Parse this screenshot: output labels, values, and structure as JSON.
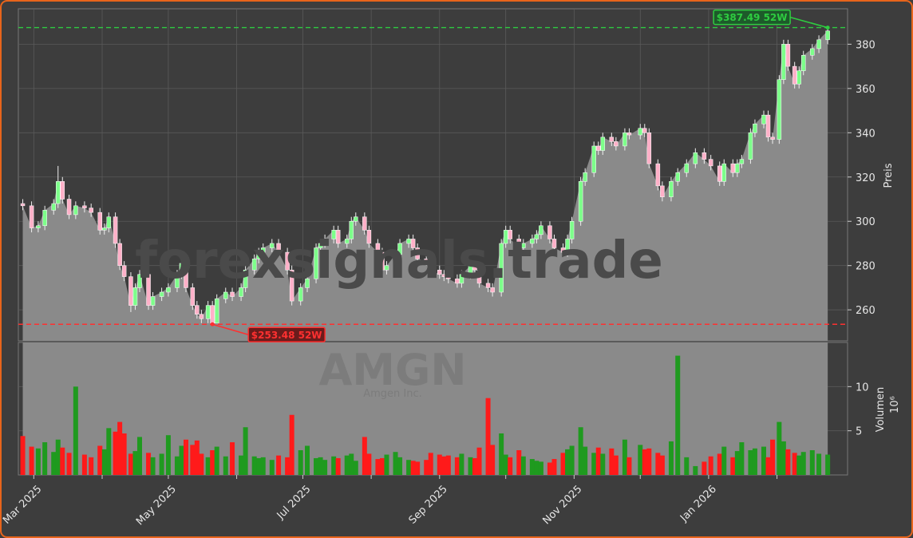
{
  "chart_data": {
    "type": "candlestick",
    "watermark": "forexsignals.trade",
    "ticker": "AMGN",
    "company": "Amgen Inc.",
    "ylabel": "Preis",
    "volume_label": "Volumen",
    "volume_unit": "10⁶",
    "up_color": "#7dff8a",
    "down_color": "#ffb0c8",
    "volume_up_color": "#1f9a1f",
    "volume_down_color": "#ff1a1a",
    "area_color": "#8a8a8a",
    "grid": true,
    "x": [
      "2025-02-24",
      "2025-02-28",
      "2025-03-03",
      "2025-03-06",
      "2025-03-10",
      "2025-03-12",
      "2025-03-14",
      "2025-03-17",
      "2025-03-20",
      "2025-03-24",
      "2025-03-27",
      "2025-03-31",
      "2025-04-02",
      "2025-04-04",
      "2025-04-07",
      "2025-04-09",
      "2025-04-11",
      "2025-04-14",
      "2025-04-16",
      "2025-04-18",
      "2025-04-22",
      "2025-04-24",
      "2025-04-28",
      "2025-05-01",
      "2025-05-05",
      "2025-05-07",
      "2025-05-09",
      "2025-05-12",
      "2025-05-14",
      "2025-05-16",
      "2025-05-19",
      "2025-05-21",
      "2025-05-23",
      "2025-05-27",
      "2025-05-30",
      "2025-06-03",
      "2025-06-05",
      "2025-06-09",
      "2025-06-11",
      "2025-06-13",
      "2025-06-17",
      "2025-06-20",
      "2025-06-24",
      "2025-06-26",
      "2025-06-30",
      "2025-07-03",
      "2025-07-07",
      "2025-07-09",
      "2025-07-11",
      "2025-07-15",
      "2025-07-17",
      "2025-07-21",
      "2025-07-23",
      "2025-07-25",
      "2025-07-29",
      "2025-07-31",
      "2025-08-04",
      "2025-08-06",
      "2025-08-08",
      "2025-08-12",
      "2025-08-14",
      "2025-08-18",
      "2025-08-20",
      "2025-08-22",
      "2025-08-26",
      "2025-08-28",
      "2025-09-01",
      "2025-09-03",
      "2025-09-05",
      "2025-09-09",
      "2025-09-11",
      "2025-09-15",
      "2025-09-17",
      "2025-09-19",
      "2025-09-23",
      "2025-09-25",
      "2025-09-29",
      "2025-10-01",
      "2025-10-03",
      "2025-10-07",
      "2025-10-09",
      "2025-10-13",
      "2025-10-15",
      "2025-10-17",
      "2025-10-21",
      "2025-10-23",
      "2025-10-27",
      "2025-10-29",
      "2025-10-31",
      "2025-11-04",
      "2025-11-06",
      "2025-11-10",
      "2025-11-12",
      "2025-11-14",
      "2025-11-18",
      "2025-11-20",
      "2025-11-24",
      "2025-11-26",
      "2025-12-01",
      "2025-12-03",
      "2025-12-05",
      "2025-12-09",
      "2025-12-11",
      "2025-12-15",
      "2025-12-18",
      "2025-12-22",
      "2025-12-26",
      "2025-12-30",
      "2026-01-02",
      "2026-01-06",
      "2026-01-08",
      "2026-01-12",
      "2026-01-14",
      "2026-01-16",
      "2026-01-20",
      "2026-01-22",
      "2026-01-26",
      "2026-01-28",
      "2026-01-30",
      "2026-02-02",
      "2026-02-04",
      "2026-02-06",
      "2026-02-09",
      "2026-02-11",
      "2026-02-13",
      "2026-02-17",
      "2026-02-20",
      "2026-02-24"
    ],
    "open": [
      308,
      307,
      297,
      298,
      305,
      308,
      318,
      310,
      303,
      307,
      306,
      304,
      296,
      297,
      302,
      290,
      280,
      275,
      262,
      270,
      276,
      262,
      266,
      268,
      270,
      276,
      281,
      270,
      262,
      258,
      256,
      262,
      254,
      265,
      268,
      266,
      270,
      278,
      283,
      286,
      288,
      290,
      286,
      278,
      264,
      270,
      274,
      288,
      290,
      292,
      296,
      290,
      292,
      300,
      302,
      296,
      290,
      286,
      278,
      280,
      285,
      290,
      292,
      288,
      283,
      282,
      278,
      276,
      275,
      274,
      272,
      276,
      280,
      278,
      272,
      270,
      268,
      290,
      296,
      292,
      288,
      290,
      292,
      294,
      298,
      292,
      288,
      286,
      292,
      300,
      318,
      322,
      334,
      332,
      338,
      336,
      334,
      340,
      339,
      342,
      340,
      326,
      316,
      311,
      318,
      322,
      326,
      331,
      328,
      325,
      318,
      326,
      322,
      326,
      328,
      340,
      344,
      348,
      338,
      337,
      364,
      380,
      370,
      362,
      368,
      375,
      378,
      382
    ],
    "high": [
      310,
      309,
      300,
      307,
      310,
      325,
      320,
      312,
      309,
      309,
      308,
      306,
      299,
      304,
      304,
      292,
      282,
      277,
      272,
      278,
      278,
      268,
      270,
      272,
      278,
      283,
      283,
      272,
      264,
      260,
      264,
      264,
      267,
      270,
      270,
      272,
      280,
      285,
      288,
      290,
      292,
      292,
      288,
      280,
      272,
      276,
      290,
      292,
      294,
      298,
      298,
      294,
      302,
      304,
      304,
      298,
      292,
      288,
      282,
      287,
      292,
      294,
      294,
      290,
      285,
      284,
      280,
      278,
      277,
      276,
      278,
      282,
      282,
      280,
      274,
      272,
      292,
      298,
      298,
      294,
      292,
      294,
      296,
      300,
      300,
      294,
      290,
      294,
      302,
      320,
      324,
      336,
      336,
      340,
      340,
      338,
      342,
      342,
      344,
      344,
      342,
      328,
      318,
      320,
      324,
      328,
      333,
      333,
      330,
      327,
      328,
      328,
      328,
      330,
      342,
      346,
      350,
      350,
      340,
      366,
      382,
      382,
      372,
      370,
      377,
      380,
      384,
      387.49
    ],
    "low": [
      305,
      295,
      295,
      296,
      303,
      306,
      308,
      301,
      301,
      304,
      302,
      294,
      294,
      295,
      288,
      278,
      273,
      259,
      260,
      268,
      260,
      260,
      264,
      266,
      268,
      274,
      268,
      260,
      256,
      254,
      254,
      253.48,
      254,
      263,
      264,
      264,
      268,
      276,
      281,
      284,
      286,
      284,
      276,
      262,
      262,
      268,
      272,
      286,
      288,
      290,
      288,
      288,
      290,
      298,
      294,
      288,
      284,
      276,
      276,
      278,
      283,
      288,
      286,
      281,
      280,
      276,
      274,
      273,
      272,
      270,
      270,
      274,
      276,
      270,
      268,
      266,
      266,
      288,
      290,
      286,
      286,
      288,
      290,
      292,
      290,
      286,
      284,
      284,
      290,
      298,
      316,
      320,
      330,
      330,
      334,
      332,
      332,
      337,
      337,
      338,
      324,
      314,
      309,
      309,
      316,
      320,
      324,
      326,
      323,
      316,
      316,
      320,
      320,
      324,
      326,
      338,
      342,
      336,
      335,
      335,
      362,
      368,
      360,
      360,
      366,
      373,
      376,
      380
    ],
    "close": [
      307,
      297,
      298,
      305,
      308,
      318,
      310,
      303,
      307,
      306,
      304,
      296,
      297,
      302,
      290,
      280,
      275,
      262,
      270,
      276,
      262,
      266,
      268,
      270,
      276,
      281,
      270,
      262,
      258,
      256,
      262,
      254,
      265,
      268,
      266,
      270,
      278,
      283,
      286,
      288,
      290,
      286,
      278,
      264,
      270,
      274,
      288,
      290,
      292,
      296,
      290,
      292,
      300,
      302,
      296,
      290,
      286,
      278,
      280,
      285,
      290,
      292,
      288,
      283,
      282,
      278,
      276,
      275,
      274,
      272,
      276,
      280,
      278,
      272,
      270,
      268,
      290,
      296,
      292,
      288,
      290,
      292,
      294,
      298,
      292,
      288,
      286,
      292,
      300,
      318,
      322,
      334,
      332,
      338,
      336,
      334,
      340,
      339,
      342,
      340,
      326,
      316,
      311,
      318,
      322,
      326,
      331,
      328,
      325,
      318,
      326,
      322,
      326,
      328,
      340,
      344,
      348,
      338,
      337,
      364,
      380,
      370,
      362,
      368,
      375,
      378,
      382,
      386
    ],
    "volume": [
      4.4,
      3.2,
      3.0,
      3.7,
      2.6,
      4.0,
      3.1,
      2.5,
      10.0,
      2.3,
      2.0,
      3.3,
      2.9,
      5.3,
      4.9,
      6.0,
      4.7,
      2.4,
      2.7,
      4.3,
      2.5,
      2.0,
      2.4,
      4.5,
      2.1,
      3.3,
      4.0,
      3.4,
      3.9,
      2.4,
      2.0,
      2.8,
      3.2,
      2.1,
      3.7,
      2.2,
      5.4,
      2.1,
      1.9,
      2.0,
      1.7,
      2.2,
      2.0,
      6.8,
      2.8,
      3.3,
      1.9,
      2.0,
      1.7,
      2.1,
      1.9,
      2.2,
      2.4,
      1.6,
      4.3,
      2.4,
      1.8,
      1.9,
      2.3,
      2.6,
      2.0,
      1.7,
      1.6,
      1.5,
      1.7,
      2.5,
      2.3,
      2.1,
      2.2,
      2.0,
      2.4,
      2.0,
      1.9,
      3.1,
      8.7,
      3.4,
      4.7,
      2.3,
      2.0,
      2.8,
      2.1,
      1.8,
      1.6,
      1.5,
      1.4,
      1.8,
      2.5,
      2.9,
      3.3,
      5.4,
      3.2,
      2.5,
      3.1,
      2.4,
      3.0,
      2.2,
      4.0,
      2.0,
      3.4,
      2.9,
      3.0,
      2.5,
      2.2,
      3.8,
      13.5,
      2.0,
      1.0,
      1.5,
      2.1,
      2.4,
      3.2,
      2.0,
      2.7,
      3.7,
      2.8,
      3.0,
      3.2,
      2.0,
      4.0,
      6.0,
      3.8,
      2.9,
      2.5,
      2.2,
      2.6,
      2.8,
      2.4,
      2.3
    ],
    "xlim": [
      "2025-02-22",
      "2026-03-05"
    ],
    "xticks": [
      {
        "value": "2025-03-01",
        "label": "Mar 2025"
      },
      "2025-04-01",
      {
        "value": "2025-05-01",
        "label": "May 2025"
      },
      "2025-06-01",
      {
        "value": "2025-07-01",
        "label": "Jul 2025"
      },
      "2025-08-01",
      {
        "value": "2025-09-01",
        "label": "Sep 2025"
      },
      "2025-10-01",
      {
        "value": "2025-11-01",
        "label": "Nov 2025"
      },
      "2025-12-01",
      {
        "value": "2026-01-01",
        "label": "Jan 2026"
      },
      "2026-02-01"
    ],
    "ylim": [
      246,
      396
    ],
    "yticks": [
      260,
      280,
      300,
      320,
      340,
      360,
      380
    ],
    "volume_ylim": [
      0,
      15
    ],
    "volume_yticks": [
      5,
      10
    ],
    "annotations": [
      {
        "value": 387.49,
        "label": "$387.49 52W",
        "color": "#2ecc40",
        "fill": "#1d5a2a"
      },
      {
        "value": 253.48,
        "label": "$253.48 52W",
        "color": "#ff3030",
        "fill": "#6a1c1c"
      }
    ]
  }
}
